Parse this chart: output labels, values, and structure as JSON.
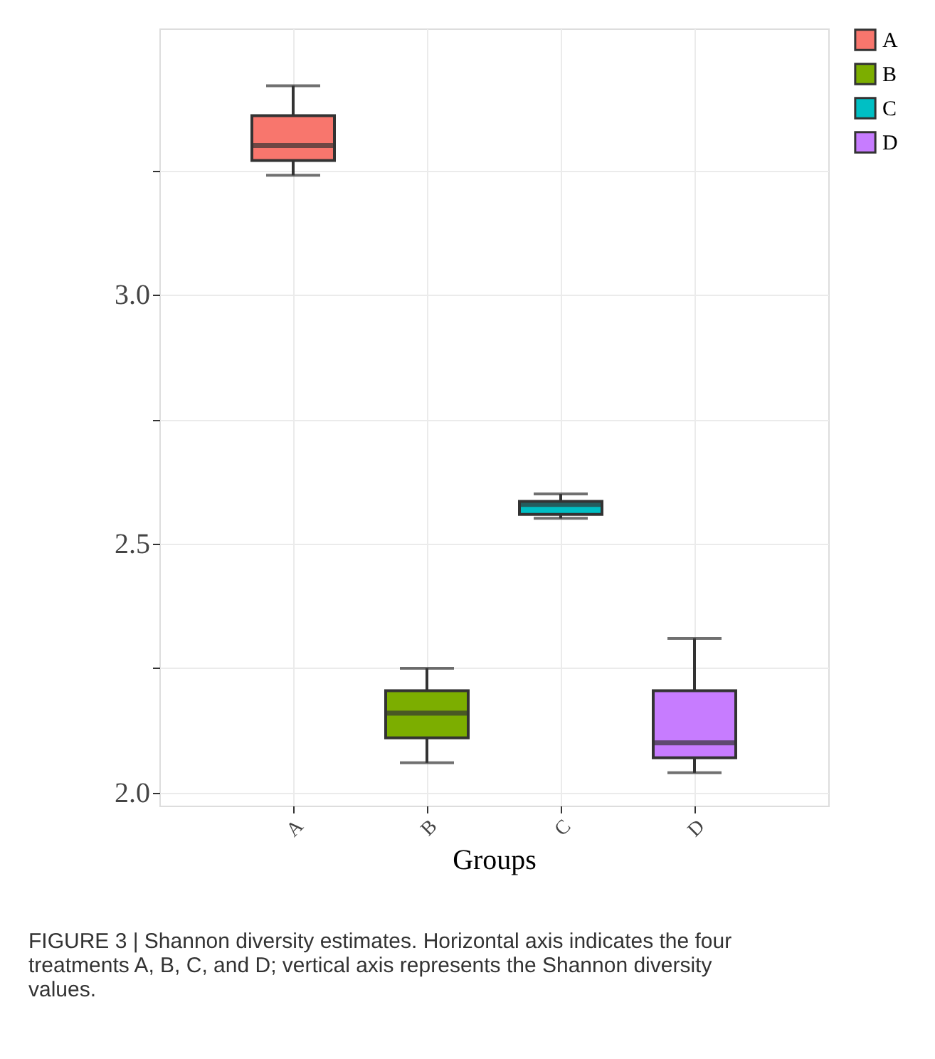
{
  "chart_data": {
    "type": "box",
    "xlabel": "Groups",
    "categories": [
      "A",
      "B",
      "C",
      "D"
    ],
    "series": [
      {
        "name": "A",
        "color": "#f8766d",
        "boxes": [
          {
            "low": 3.24,
            "q1": 3.27,
            "median": 3.3,
            "q3": 3.36,
            "high": 3.42
          },
          null,
          null,
          null
        ]
      },
      {
        "name": "B",
        "color": "#7cae00",
        "boxes": [
          null,
          {
            "low": 2.06,
            "q1": 2.11,
            "median": 2.16,
            "q3": 2.205,
            "high": 2.25
          },
          null,
          null
        ]
      },
      {
        "name": "C",
        "color": "#00bfc4",
        "boxes": [
          null,
          null,
          {
            "low": 2.551,
            "q1": 2.559,
            "median": 2.579,
            "q3": 2.585,
            "high": 2.6
          },
          null
        ]
      },
      {
        "name": "D",
        "color": "#c77cff",
        "boxes": [
          null,
          null,
          null,
          {
            "low": 2.04,
            "q1": 2.07,
            "median": 2.1,
            "q3": 2.205,
            "high": 2.31
          }
        ]
      }
    ],
    "ylim": [
      1.974,
      3.535
    ],
    "yticks": [
      {
        "value": 2,
        "label": "2.0"
      },
      {
        "value": 2.25,
        "label": null
      },
      {
        "value": 2.5,
        "label": "2.5"
      },
      {
        "value": 2.75,
        "label": null
      },
      {
        "value": 3,
        "label": "3.0"
      },
      {
        "value": 3.25,
        "label": null
      }
    ],
    "grid": true,
    "legend": "right",
    "annotations": [
      "FIGURE 3 | Shannon diversity estimates. Horizontal axis indicates the four treatments A, B, C, and D; vertical axis represents the Shannon diversity values."
    ]
  }
}
